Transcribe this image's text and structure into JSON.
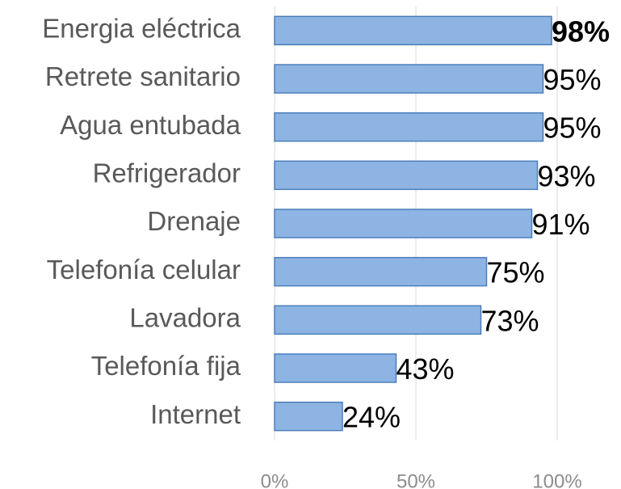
{
  "chart_data": {
    "type": "bar",
    "orientation": "horizontal",
    "categories": [
      "Energia eléctrica",
      "Retrete sanitario",
      "Agua entubada",
      "Refrigerador",
      "Drenaje",
      "Telefonía celular",
      "Lavadora",
      "Telefonía fija",
      "Internet"
    ],
    "values": [
      98,
      95,
      95,
      93,
      91,
      75,
      73,
      43,
      24
    ],
    "value_labels": [
      "98%",
      "95%",
      "95%",
      "93%",
      "91%",
      "75%",
      "73%",
      "43%",
      "24%"
    ],
    "color": "#8eb4e3",
    "xlim": [
      0,
      100
    ],
    "xticks": [
      {
        "value": 0,
        "label": "0%"
      },
      {
        "value": 50,
        "label": "50%"
      },
      {
        "value": 100,
        "label": "100%"
      }
    ],
    "grid": true
  }
}
